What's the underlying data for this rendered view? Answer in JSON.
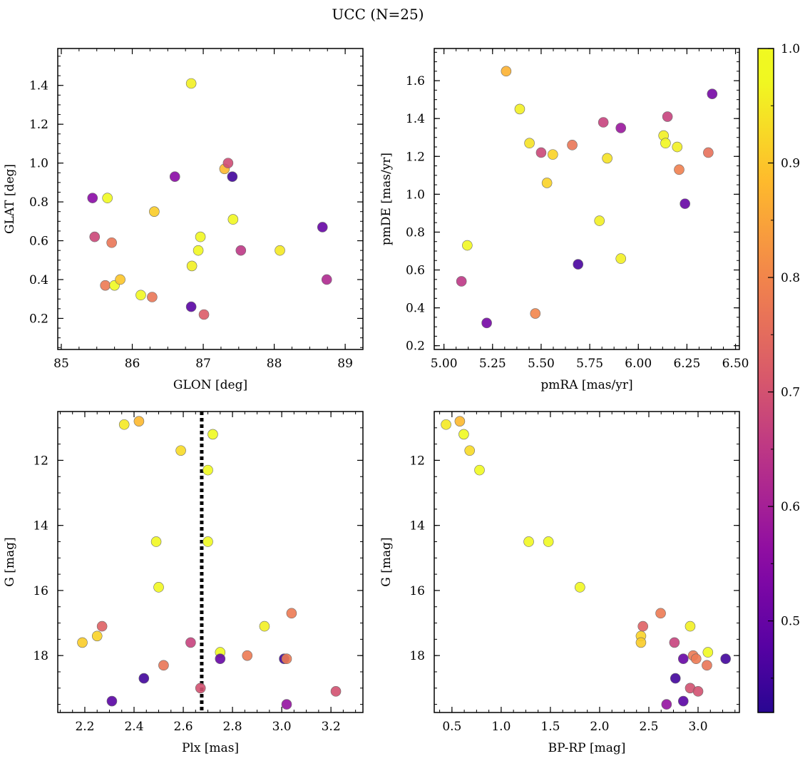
{
  "figure": {
    "title": "UCC (N=25)"
  },
  "colorbar": {
    "colormap": "plasma",
    "range": [
      0.42,
      1.0
    ],
    "tick_labels": [
      "0.5",
      "0.6",
      "0.7",
      "0.8",
      "0.9",
      "1.0"
    ],
    "tick_values": [
      0.5,
      0.6,
      0.7,
      0.8,
      0.9,
      1.0
    ]
  },
  "chart_data": [
    {
      "type": "scatter",
      "xlabel": "GLON [deg]",
      "ylabel": "GLAT [deg]",
      "xlim": [
        84.95,
        89.25
      ],
      "ylim": [
        0.04,
        1.59
      ],
      "xticks": [
        85,
        86,
        87,
        88,
        89
      ],
      "xtick_labels": [
        "85",
        "86",
        "87",
        "88",
        "89"
      ],
      "yticks": [
        0.2,
        0.4,
        0.6,
        0.8,
        1.0,
        1.2,
        1.4
      ],
      "ytick_labels": [
        "0.2",
        "0.4",
        "0.6",
        "0.8",
        "1.0",
        "1.2",
        "1.4"
      ],
      "x": [
        85.44,
        85.47,
        85.65,
        85.62,
        85.71,
        85.75,
        85.83,
        86.12,
        86.28,
        86.31,
        86.6,
        86.83,
        86.83,
        86.84,
        86.93,
        86.96,
        87.01,
        87.3,
        87.35,
        87.41,
        87.42,
        87.53,
        88.08,
        88.68,
        88.74
      ],
      "y": [
        0.82,
        0.62,
        0.82,
        0.37,
        0.59,
        0.37,
        0.4,
        0.32,
        0.31,
        0.75,
        0.93,
        1.41,
        0.26,
        0.47,
        0.55,
        0.62,
        0.22,
        0.97,
        1.0,
        0.93,
        0.71,
        0.55,
        0.55,
        0.67,
        0.4
      ],
      "c": [
        0.55,
        0.68,
        0.98,
        0.78,
        0.77,
        0.99,
        0.9,
        0.97,
        0.77,
        0.91,
        0.55,
        0.96,
        0.48,
        0.96,
        0.97,
        0.97,
        0.72,
        0.88,
        0.69,
        0.45,
        0.97,
        0.65,
        0.95,
        0.5,
        0.62
      ]
    },
    {
      "type": "scatter",
      "xlabel": "pmRA [mas/yr]",
      "ylabel": "pmDE [mas/yr]",
      "xlim": [
        4.95,
        6.52
      ],
      "ylim": [
        0.18,
        1.77
      ],
      "xticks": [
        5.0,
        5.25,
        5.5,
        5.75,
        6.0,
        6.25,
        6.5
      ],
      "xtick_labels": [
        "5.00",
        "5.25",
        "5.50",
        "5.75",
        "6.00",
        "6.25",
        "6.50"
      ],
      "yticks": [
        0.2,
        0.4,
        0.6,
        0.8,
        1.0,
        1.2,
        1.4,
        1.6
      ],
      "ytick_labels": [
        "0.2",
        "0.4",
        "0.6",
        "0.8",
        "1.0",
        "1.2",
        "1.4",
        "1.6"
      ],
      "x": [
        5.09,
        5.12,
        5.22,
        5.32,
        5.39,
        5.44,
        5.47,
        5.5,
        5.53,
        5.56,
        5.66,
        5.69,
        5.8,
        5.82,
        5.84,
        5.91,
        5.91,
        6.13,
        6.14,
        6.15,
        6.2,
        6.21,
        6.24,
        6.36,
        6.38
      ],
      "y": [
        0.54,
        0.73,
        0.32,
        1.65,
        1.45,
        1.27,
        0.37,
        1.22,
        1.06,
        1.21,
        1.26,
        0.63,
        0.86,
        1.38,
        1.19,
        1.35,
        0.66,
        1.31,
        1.27,
        1.41,
        1.25,
        1.13,
        0.95,
        1.22,
        1.53
      ],
      "c": [
        0.65,
        0.97,
        0.52,
        0.87,
        0.96,
        0.94,
        0.8,
        0.68,
        0.92,
        0.92,
        0.77,
        0.46,
        0.96,
        0.67,
        0.94,
        0.58,
        0.96,
        0.96,
        0.97,
        0.67,
        0.96,
        0.79,
        0.5,
        0.76,
        0.52
      ]
    },
    {
      "type": "scatter",
      "xlabel": "Plx [mas]",
      "ylabel": "G [mag]",
      "xlim": [
        2.09,
        3.33
      ],
      "ylim": [
        19.75,
        10.5
      ],
      "y_inverted": true,
      "xticks": [
        2.2,
        2.4,
        2.6,
        2.8,
        3.0,
        3.2
      ],
      "xtick_labels": [
        "2.2",
        "2.4",
        "2.6",
        "2.8",
        "3.0",
        "3.2"
      ],
      "yticks": [
        12,
        14,
        16,
        18
      ],
      "ytick_labels": [
        "12",
        "14",
        "16",
        "18"
      ],
      "vline_x": 2.675,
      "x": [
        2.36,
        2.42,
        2.59,
        2.72,
        2.7,
        2.49,
        2.7,
        2.5,
        2.27,
        2.19,
        2.25,
        2.63,
        2.93,
        3.04,
        2.75,
        2.86,
        3.01,
        3.02,
        2.75,
        2.44,
        2.52,
        2.67,
        2.31,
        3.02,
        3.22
      ],
      "y": [
        10.9,
        10.8,
        11.7,
        11.2,
        12.3,
        14.5,
        14.5,
        15.9,
        17.1,
        17.6,
        17.4,
        17.6,
        17.1,
        16.7,
        17.9,
        18.0,
        18.1,
        18.1,
        18.1,
        18.7,
        18.3,
        19.0,
        19.4,
        19.5,
        19.1
      ],
      "c": [
        0.95,
        0.88,
        0.93,
        0.98,
        0.98,
        0.97,
        0.98,
        0.97,
        0.73,
        0.91,
        0.92,
        0.67,
        0.96,
        0.78,
        0.98,
        0.78,
        0.45,
        0.78,
        0.5,
        0.45,
        0.77,
        0.7,
        0.48,
        0.57,
        0.7
      ]
    },
    {
      "type": "scatter",
      "xlabel": "BP-RP [mag]",
      "ylabel": "G [mag]",
      "xlim": [
        0.32,
        3.42
      ],
      "ylim": [
        19.75,
        10.5
      ],
      "y_inverted": true,
      "xticks": [
        0.5,
        1.0,
        1.5,
        2.0,
        2.5,
        3.0
      ],
      "xtick_labels": [
        "0.5",
        "1.0",
        "1.5",
        "2.0",
        "2.5",
        "3.0"
      ],
      "yticks": [
        12,
        14,
        16,
        18
      ],
      "ytick_labels": [
        "12",
        "14",
        "16",
        "18"
      ],
      "x": [
        0.44,
        0.58,
        0.62,
        0.68,
        0.78,
        1.28,
        1.48,
        1.8,
        2.62,
        2.44,
        2.42,
        2.42,
        2.76,
        2.92,
        2.95,
        2.98,
        3.1,
        3.09,
        3.28,
        2.85,
        2.77,
        2.92,
        3.0,
        2.68,
        2.85
      ],
      "y": [
        10.9,
        10.8,
        11.2,
        11.7,
        12.3,
        14.5,
        14.5,
        15.9,
        16.7,
        17.1,
        17.4,
        17.6,
        17.6,
        17.1,
        18.0,
        18.1,
        17.9,
        18.3,
        18.1,
        18.1,
        18.7,
        19.0,
        19.1,
        19.5,
        19.4
      ],
      "c": [
        0.95,
        0.88,
        0.98,
        0.93,
        0.98,
        0.97,
        0.98,
        0.97,
        0.78,
        0.73,
        0.92,
        0.91,
        0.67,
        0.96,
        0.78,
        0.78,
        0.98,
        0.77,
        0.45,
        0.5,
        0.45,
        0.7,
        0.7,
        0.57,
        0.48
      ]
    }
  ]
}
